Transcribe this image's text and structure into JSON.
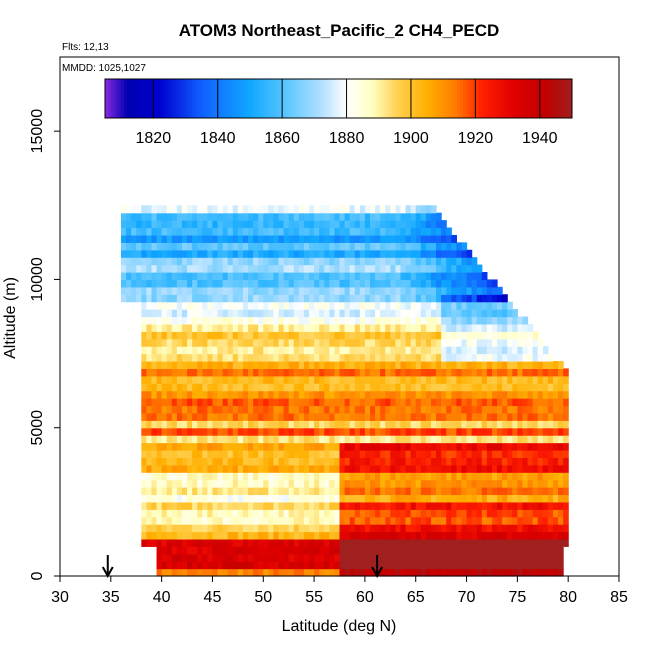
{
  "chart_data": {
    "type": "heatmap",
    "title": "ATOM3 Northeast_Pacific_2 CH4_PECD",
    "flights_note": "Flts: 12,13",
    "dates_note": "MMDD: 1025,1027",
    "xlabel": "Latitude (deg N)",
    "ylabel": "Altitude (m)",
    "xlim": [
      30,
      85
    ],
    "ylim": [
      0,
      17500
    ],
    "x_ticks": [
      30,
      35,
      40,
      45,
      50,
      55,
      60,
      65,
      70,
      75,
      80,
      85
    ],
    "y_ticks": [
      0,
      5000,
      10000,
      15000
    ],
    "colorbar": {
      "range": [
        1805,
        1950
      ],
      "ticks": [
        1820,
        1840,
        1860,
        1880,
        1900,
        1920,
        1940
      ],
      "divisions": [
        1820,
        1840,
        1860,
        1880,
        1900,
        1920,
        1940
      ],
      "stops": [
        {
          "v": 1805,
          "c": "#8a2be2"
        },
        {
          "v": 1812,
          "c": "#0000b0"
        },
        {
          "v": 1822,
          "c": "#0000d0"
        },
        {
          "v": 1835,
          "c": "#1060ff"
        },
        {
          "v": 1850,
          "c": "#10a8ff"
        },
        {
          "v": 1862,
          "c": "#60c8ff"
        },
        {
          "v": 1872,
          "c": "#b0dfff"
        },
        {
          "v": 1880,
          "c": "#ffffff"
        },
        {
          "v": 1888,
          "c": "#ffffc0"
        },
        {
          "v": 1896,
          "c": "#ffd050"
        },
        {
          "v": 1905,
          "c": "#ffb000"
        },
        {
          "v": 1914,
          "c": "#ff7a00"
        },
        {
          "v": 1922,
          "c": "#ff2000"
        },
        {
          "v": 1932,
          "c": "#e00000"
        },
        {
          "v": 1942,
          "c": "#c00000"
        },
        {
          "v": 1950,
          "c": "#a02020"
        }
      ]
    },
    "altitude_bands_m": [
      {
        "alt": 200,
        "value": 1925
      },
      {
        "alt": 800,
        "value": 1930
      },
      {
        "alt": 1500,
        "value": 1902
      },
      {
        "alt": 2500,
        "value": 1892
      },
      {
        "alt": 3500,
        "value": 1898
      },
      {
        "alt": 4500,
        "value": 1905
      },
      {
        "alt": 5500,
        "value": 1908
      },
      {
        "alt": 6500,
        "value": 1910
      },
      {
        "alt": 7500,
        "value": 1900
      },
      {
        "alt": 8500,
        "value": 1895
      },
      {
        "alt": 9500,
        "value": 1870
      },
      {
        "alt": 10500,
        "value": 1858
      },
      {
        "alt": 11500,
        "value": 1860
      },
      {
        "alt": 12300,
        "value": 1865
      }
    ],
    "coverage": {
      "lat_min": 35,
      "lat_max": 80,
      "alt_max": 12500
    },
    "flight_markers": [
      {
        "lat": 34.7,
        "label": ""
      },
      {
        "lat": 61.2,
        "label": ""
      }
    ]
  }
}
